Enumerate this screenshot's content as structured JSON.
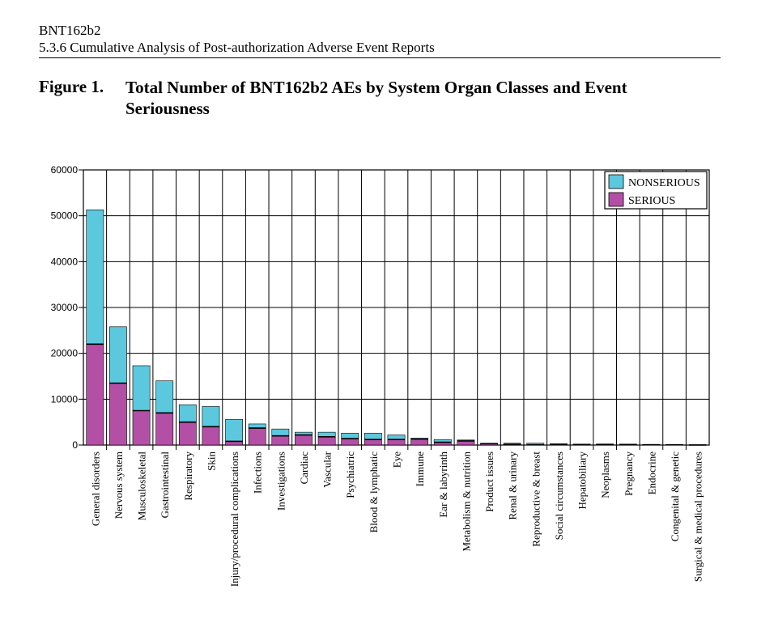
{
  "header": {
    "product": "BNT162b2",
    "section": "5.3.6 Cumulative Analysis of Post-authorization Adverse Event Reports"
  },
  "figure": {
    "label": "Figure 1.",
    "title": "Total Number of BNT162b2 AEs by System Organ Classes and Event Seriousness"
  },
  "colors": {
    "nonserious": "#5bc8dd",
    "serious": "#b44fa6"
  },
  "chart_data": {
    "type": "bar",
    "stacked": true,
    "title": "",
    "xlabel": "",
    "ylabel": "",
    "ylim": [
      0,
      60000
    ],
    "yticks": [
      0,
      10000,
      20000,
      30000,
      40000,
      50000,
      60000
    ],
    "ytick_labels": [
      "0",
      "10000",
      "20000",
      "30000",
      "40000",
      "50000",
      "60000"
    ],
    "grid": true,
    "legend_position": "top-right",
    "categories": [
      "General disorders",
      "Nervous system",
      "Musculoskeletal",
      "Gastrointestinal",
      "Respiratory",
      "Skin",
      "Injury/procedural complications",
      "Infections",
      "Investigations",
      "Cardiac",
      "Vascular",
      "Psychiatric",
      "Blood & lymphatic",
      "Eye",
      "Immune",
      "Ear & labyrinth",
      "Metabolism & nutrition",
      "Product issues",
      "Renal & urinary",
      "Reproductive & breast",
      "Social circumstances",
      "Hepatobiliary",
      "Neoplasms",
      "Pregnancy",
      "Endocrine",
      "Congenital & genetic",
      "Surgical & medical procedures"
    ],
    "series": [
      {
        "name": "SERIOUS",
        "values": [
          22000,
          13500,
          7500,
          7000,
          5000,
          4000,
          800,
          3700,
          2000,
          2200,
          1800,
          1400,
          1200,
          1200,
          1300,
          600,
          900,
          300,
          150,
          50,
          80,
          120,
          150,
          100,
          60,
          50,
          20
        ]
      },
      {
        "name": "NONSERIOUS",
        "values": [
          29300,
          12300,
          9800,
          7000,
          3800,
          4400,
          4800,
          900,
          1500,
          600,
          1000,
          1200,
          1400,
          1000,
          200,
          600,
          200,
          100,
          250,
          350,
          220,
          80,
          50,
          100,
          80,
          60,
          30
        ]
      }
    ]
  }
}
